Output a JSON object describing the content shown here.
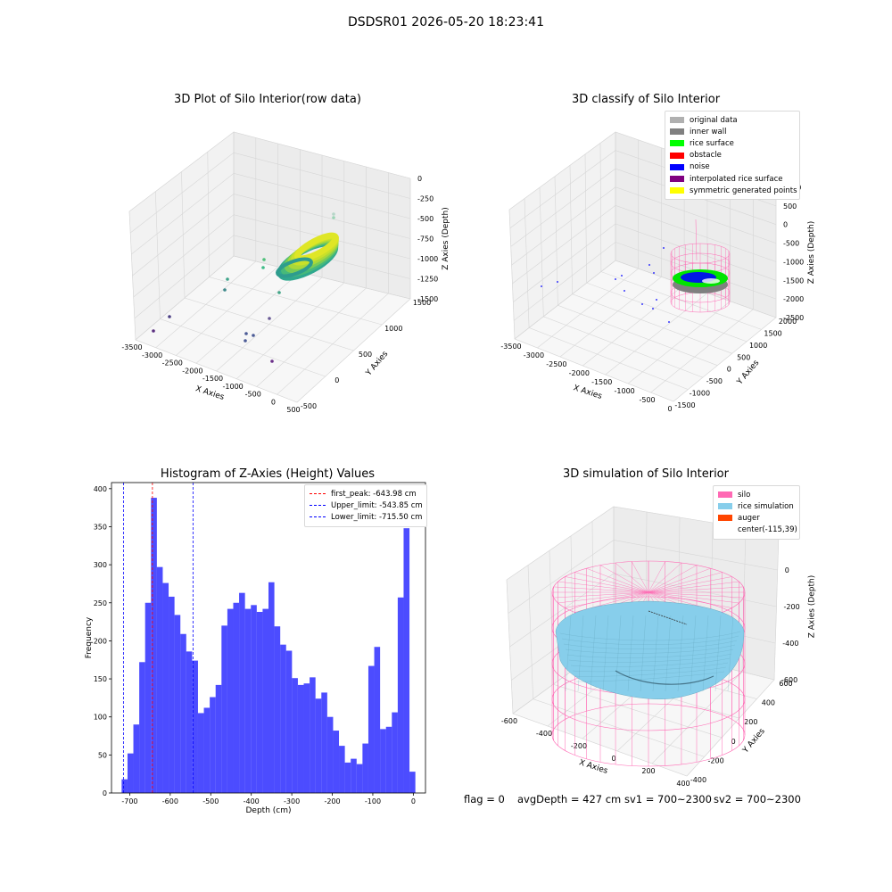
{
  "suptitle": "DSDSR01 2026-05-20 18:23:41",
  "panels": {
    "raw": {
      "title": "3D Plot of Silo Interior(row data)",
      "xlabel": "X Axies",
      "ylabel": "Y Axies",
      "zlabel": "Z Axies (Depth)",
      "xticks": [
        "-3500",
        "-3000",
        "-2500",
        "-2000",
        "-1500",
        "-1000",
        "-500",
        "0",
        "500"
      ],
      "yticks": [
        "-500",
        "0",
        "500",
        "1000",
        "1500"
      ],
      "zticks": [
        "0",
        "-250",
        "-500",
        "-750",
        "-1000",
        "-1250",
        "-1500"
      ]
    },
    "classify": {
      "title": "3D classify of Silo Interior",
      "xlabel": "X Axies",
      "ylabel": "Y Axies",
      "zlabel": "Z Axies (Depth)",
      "xticks": [
        "-3500",
        "-3000",
        "-2500",
        "-2000",
        "-1500",
        "-1000",
        "-500",
        "0"
      ],
      "yticks": [
        "-1500",
        "-1000",
        "-500",
        "0",
        "500",
        "1000",
        "1500",
        "2000"
      ],
      "zticks": [
        "1000",
        "500",
        "0",
        "-500",
        "-1000",
        "-1500",
        "-2000",
        "-2500"
      ],
      "legend": [
        {
          "label": "original data",
          "color": "#b0b0b0"
        },
        {
          "label": "inner wall",
          "color": "#808080"
        },
        {
          "label": "rice surface",
          "color": "#00ff00"
        },
        {
          "label": "obstacle",
          "color": "#ff0000"
        },
        {
          "label": "noise",
          "color": "#0000ff"
        },
        {
          "label": "interpolated rice surface",
          "color": "#800080"
        },
        {
          "label": "symmetric generated points",
          "color": "#ffff00"
        }
      ]
    },
    "simulation": {
      "title": "3D simulation of Silo Interior",
      "xlabel": "X Axies",
      "ylabel": "Y Axies",
      "zlabel": "Z Axies (Depth)",
      "xticks": [
        "-600",
        "-400",
        "-200",
        "0",
        "200",
        "400"
      ],
      "yticks": [
        "-400",
        "-200",
        "0",
        "200",
        "400",
        "600"
      ],
      "zticks": [
        "200",
        "0",
        "-200",
        "-400",
        "-600"
      ],
      "legend": [
        {
          "label": "silo",
          "color": "#ff69b4"
        },
        {
          "label": "rice simulation",
          "color": "#87ceeb"
        },
        {
          "label": "auger",
          "color": "#ff4500"
        },
        {
          "label": "center(-115,39)",
          "color": ""
        }
      ]
    }
  },
  "chart_data": {
    "type": "bar",
    "title": "Histogram of Z-Axies (Height) Values",
    "xlabel": "Depth (cm)",
    "ylabel": "Frequency",
    "xlim": [
      -745,
      30
    ],
    "ylim": [
      0,
      408
    ],
    "xticks": [
      -700,
      -600,
      -500,
      -400,
      -300,
      -200,
      -100,
      0
    ],
    "yticks": [
      0,
      50,
      100,
      150,
      200,
      250,
      300,
      350,
      400
    ],
    "bar_color": "#0000ff",
    "bin_start": -720,
    "bin_width": 14.5,
    "values": [
      18,
      52,
      90,
      172,
      250,
      388,
      297,
      276,
      258,
      234,
      209,
      186,
      174,
      105,
      112,
      126,
      142,
      220,
      242,
      250,
      263,
      242,
      247,
      238,
      242,
      277,
      219,
      195,
      187,
      151,
      142,
      144,
      152,
      124,
      132,
      100,
      82,
      62,
      40,
      45,
      38,
      65,
      167,
      192,
      84,
      87,
      106,
      257,
      348,
      28
    ],
    "lines": [
      {
        "label": "first_peak: -643.98 cm",
        "x": -643.98,
        "color": "#ff0000"
      },
      {
        "label": "Upper_limit: -543.85 cm",
        "x": -543.85,
        "color": "#0000ff"
      },
      {
        "label": "Lower_limit: -715.50 cm",
        "x": -715.5,
        "color": "#0000ff"
      }
    ]
  },
  "status": {
    "flag": "flag = 0",
    "avg": "avgDepth = 427 cm",
    "sv1": "sv1 = 700~2300",
    "sv2": "sv2 = 700~2300"
  }
}
